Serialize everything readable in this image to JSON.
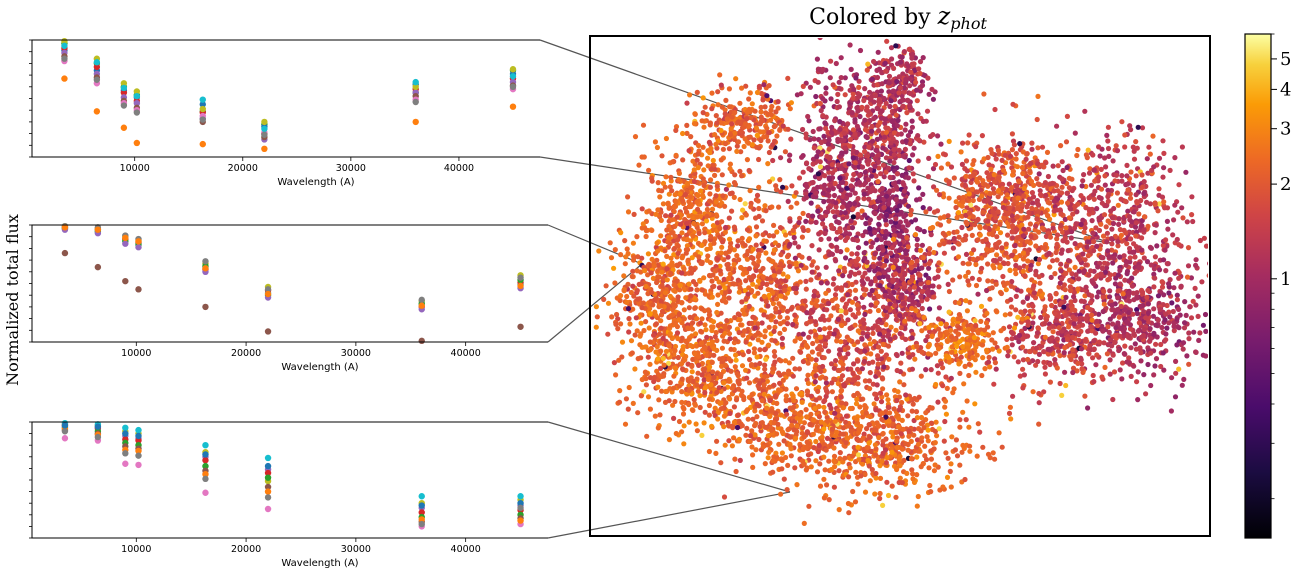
{
  "title": {
    "prefix": "Colored by ",
    "symbol": "z",
    "subscript": "phot"
  },
  "ylabel": "Normalized total flux",
  "colorbar": {
    "colormap": "inferno",
    "scale": "log",
    "ticks": [
      "5",
      "4",
      "3",
      "2",
      "1"
    ],
    "tick_values": [
      5,
      4,
      3,
      2,
      1
    ],
    "range": [
      0.15,
      6
    ]
  },
  "chart_data": [
    {
      "type": "scatter",
      "title": "",
      "xlabel": "Wavelength (A)",
      "x_ticks": [
        10000,
        20000,
        30000,
        40000
      ],
      "xlim": [
        500,
        47500
      ],
      "ylim": [
        0,
        1
      ],
      "wavelengths": [
        3500,
        6500,
        9000,
        10200,
        16300,
        22000,
        36000,
        45000
      ],
      "series": [
        {
          "color": "#2ca02c",
          "values": [
            0.97,
            0.8,
            0.6,
            0.53,
            0.39,
            0.28,
            0.55,
            0.74
          ]
        },
        {
          "color": "#ff7f0e",
          "values": [
            0.67,
            0.39,
            0.25,
            0.12,
            0.11,
            0.07,
            0.3,
            0.43
          ]
        },
        {
          "color": "#1f77b4",
          "values": [
            0.91,
            0.74,
            0.57,
            0.51,
            0.45,
            0.26,
            0.62,
            0.71
          ]
        },
        {
          "color": "#d62728",
          "values": [
            0.93,
            0.77,
            0.55,
            0.48,
            0.38,
            0.2,
            0.58,
            0.67
          ]
        },
        {
          "color": "#9467bd",
          "values": [
            0.89,
            0.71,
            0.51,
            0.46,
            0.33,
            0.15,
            0.55,
            0.64
          ]
        },
        {
          "color": "#8c564b",
          "values": [
            0.86,
            0.68,
            0.48,
            0.42,
            0.3,
            0.17,
            0.52,
            0.61
          ]
        },
        {
          "color": "#e377c2",
          "values": [
            0.82,
            0.63,
            0.46,
            0.4,
            0.35,
            0.21,
            0.49,
            0.58
          ]
        },
        {
          "color": "#bcbd22",
          "values": [
            0.99,
            0.84,
            0.63,
            0.56,
            0.41,
            0.3,
            0.6,
            0.75
          ]
        },
        {
          "color": "#17becf",
          "values": [
            0.95,
            0.81,
            0.59,
            0.52,
            0.49,
            0.24,
            0.64,
            0.69
          ]
        },
        {
          "color": "#7f7f7f",
          "values": [
            0.84,
            0.66,
            0.44,
            0.38,
            0.32,
            0.19,
            0.47,
            0.6
          ]
        }
      ]
    },
    {
      "type": "scatter",
      "title": "",
      "xlabel": "Wavelength (A)",
      "x_ticks": [
        10000,
        20000,
        30000,
        40000
      ],
      "xlim": [
        500,
        47500
      ],
      "ylim": [
        0,
        1
      ],
      "wavelengths": [
        3500,
        6500,
        9000,
        10200,
        16300,
        22000,
        36000,
        45000
      ],
      "series": [
        {
          "color": "#8c564b",
          "values": [
            0.76,
            0.64,
            0.52,
            0.45,
            0.3,
            0.09,
            0.01,
            0.13
          ]
        },
        {
          "color": "#bcbd22",
          "values": [
            0.99,
            0.97,
            0.9,
            0.87,
            0.67,
            0.47,
            0.35,
            0.57
          ]
        },
        {
          "color": "#17becf",
          "values": [
            0.97,
            0.95,
            0.87,
            0.84,
            0.64,
            0.42,
            0.32,
            0.49
          ]
        },
        {
          "color": "#d62728",
          "values": [
            0.98,
            0.96,
            0.88,
            0.85,
            0.62,
            0.44,
            0.3,
            0.51
          ]
        },
        {
          "color": "#2ca02c",
          "values": [
            0.97,
            0.94,
            0.86,
            0.83,
            0.65,
            0.4,
            0.33,
            0.53
          ]
        },
        {
          "color": "#9467bd",
          "values": [
            0.96,
            0.93,
            0.84,
            0.81,
            0.6,
            0.38,
            0.28,
            0.46
          ]
        },
        {
          "color": "#7f7f7f",
          "values": [
            0.99,
            0.98,
            0.91,
            0.88,
            0.69,
            0.45,
            0.36,
            0.55
          ]
        },
        {
          "color": "#ff7f0e",
          "values": [
            0.98,
            0.96,
            0.89,
            0.86,
            0.63,
            0.41,
            0.31,
            0.48
          ]
        }
      ]
    },
    {
      "type": "scatter",
      "title": "",
      "xlabel": "Wavelength (A)",
      "x_ticks": [
        10000,
        20000,
        30000,
        40000
      ],
      "xlim": [
        500,
        47500
      ],
      "ylim": [
        0,
        1
      ],
      "wavelengths": [
        3500,
        6500,
        9000,
        10200,
        16300,
        22000,
        36000,
        45000
      ],
      "series": [
        {
          "color": "#e377c2",
          "values": [
            0.86,
            0.84,
            0.64,
            0.63,
            0.39,
            0.25,
            0.1,
            0.12
          ]
        },
        {
          "color": "#bcbd22",
          "values": [
            0.98,
            0.97,
            0.92,
            0.9,
            0.74,
            0.49,
            0.3,
            0.33
          ]
        },
        {
          "color": "#17becf",
          "values": [
            0.99,
            0.98,
            0.95,
            0.93,
            0.8,
            0.69,
            0.36,
            0.36
          ]
        },
        {
          "color": "#9467bd",
          "values": [
            0.96,
            0.94,
            0.88,
            0.86,
            0.7,
            0.59,
            0.26,
            0.28
          ]
        },
        {
          "color": "#d62728",
          "values": [
            0.97,
            0.95,
            0.85,
            0.84,
            0.67,
            0.56,
            0.22,
            0.24
          ]
        },
        {
          "color": "#2ca02c",
          "values": [
            0.95,
            0.92,
            0.82,
            0.8,
            0.62,
            0.52,
            0.18,
            0.2
          ]
        },
        {
          "color": "#8c564b",
          "values": [
            0.93,
            0.9,
            0.79,
            0.77,
            0.58,
            0.44,
            0.14,
            0.17
          ]
        },
        {
          "color": "#ff7f0e",
          "values": [
            0.94,
            0.89,
            0.76,
            0.75,
            0.55,
            0.4,
            0.16,
            0.15
          ]
        },
        {
          "color": "#1f77b4",
          "values": [
            0.97,
            0.96,
            0.9,
            0.88,
            0.72,
            0.62,
            0.28,
            0.3
          ]
        },
        {
          "color": "#7f7f7f",
          "values": [
            0.92,
            0.87,
            0.73,
            0.71,
            0.51,
            0.35,
            0.12,
            0.26
          ]
        }
      ]
    },
    {
      "type": "scatter",
      "title": "",
      "colored_by": "z_phot",
      "axes": "none",
      "description_of_marks": "t-SNE style embedding colored on log scale",
      "zlim": [
        0.15,
        6
      ]
    }
  ]
}
